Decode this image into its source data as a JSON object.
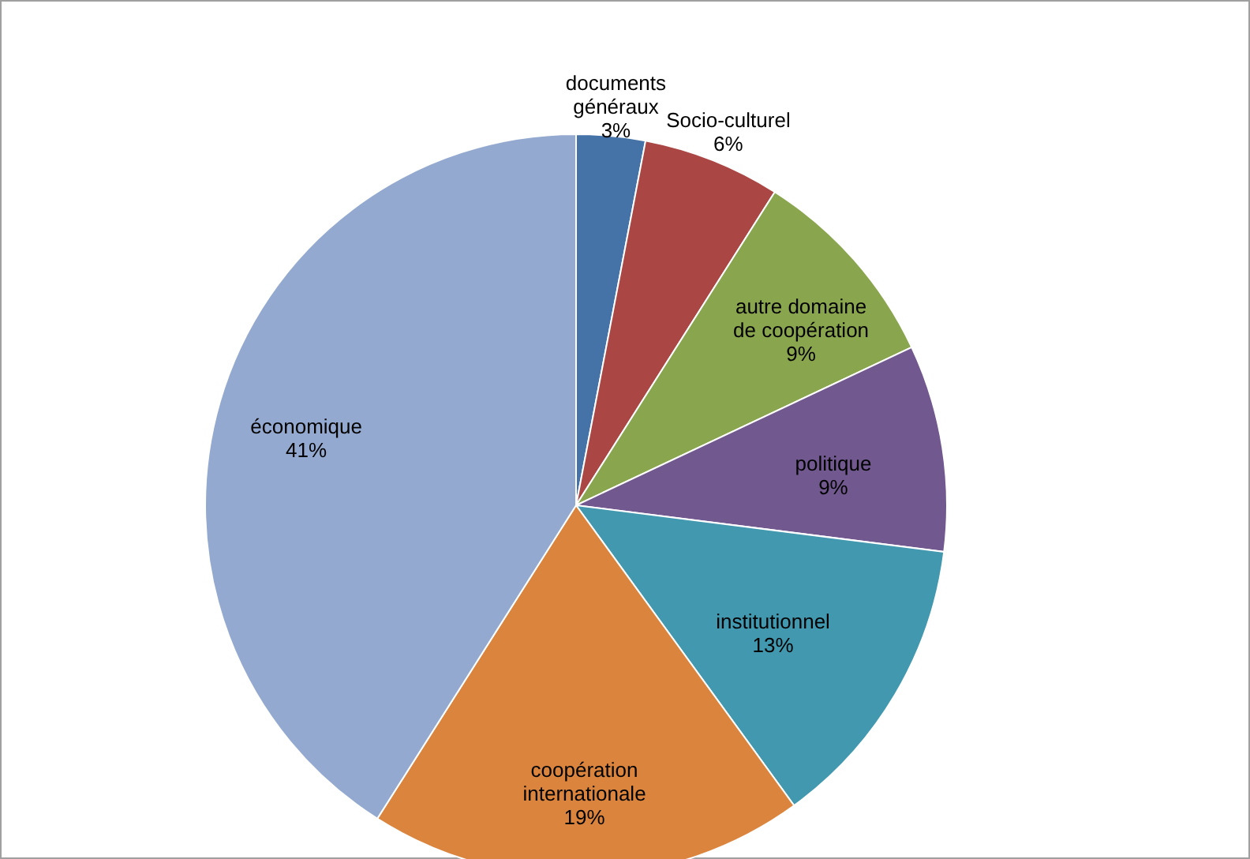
{
  "chart_data": {
    "type": "pie",
    "categories": [
      "documents généraux",
      "Socio-culturel",
      "autre domaine de coopération",
      "politique",
      "institutionnel",
      "coopération internationale",
      "économique"
    ],
    "values": [
      3,
      6,
      9,
      9,
      13,
      19,
      41
    ],
    "value_labels": [
      "3%",
      "6%",
      "9%",
      "9%",
      "13%",
      "19%",
      "41%"
    ],
    "colors": [
      "#4572a7",
      "#aa4643",
      "#89a54e",
      "#71588f",
      "#4198af",
      "#db843d",
      "#93a9cf"
    ]
  }
}
